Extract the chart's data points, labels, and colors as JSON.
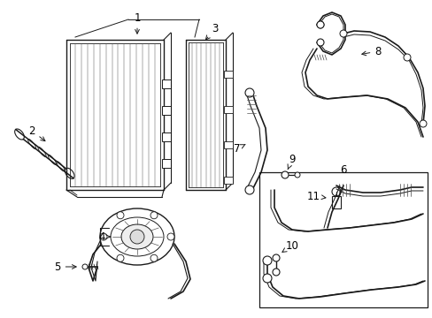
{
  "bg_color": "#ffffff",
  "line_color": "#1a1a1a",
  "figsize": [
    4.89,
    3.6
  ],
  "dpi": 100,
  "label_fontsize": 8.5
}
